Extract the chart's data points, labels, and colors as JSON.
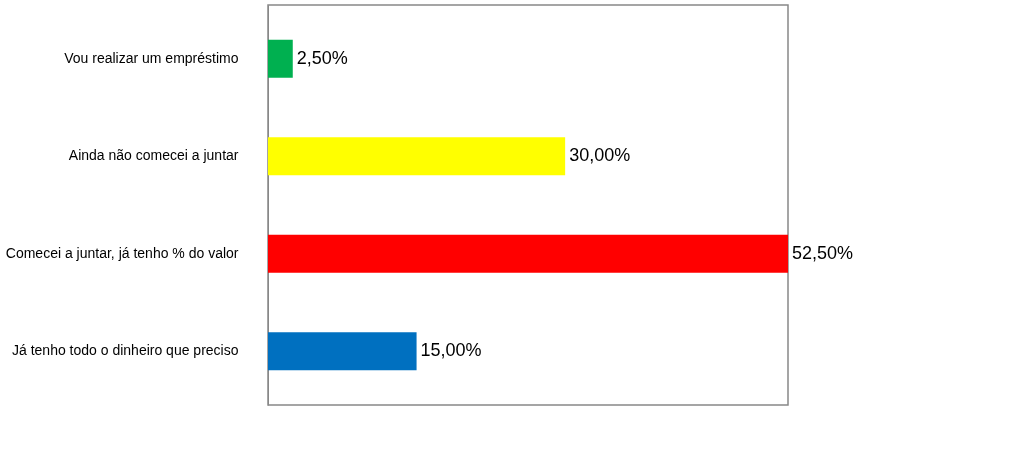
{
  "chart_data": {
    "type": "bar",
    "orientation": "horizontal",
    "categories": [
      "Vou realizar um empréstimo",
      "Ainda não comecei a juntar",
      "Comecei a juntar, já tenho % do valor",
      "Já tenho todo o dinheiro que preciso"
    ],
    "values": [
      2.5,
      30.0,
      52.5,
      15.0
    ],
    "colors": [
      "#00b050",
      "#ffff00",
      "#ff0000",
      "#0070c0"
    ],
    "value_labels": [
      "2,50%",
      "30,00%",
      "52,50%",
      "15,00%"
    ],
    "grid": false
  }
}
